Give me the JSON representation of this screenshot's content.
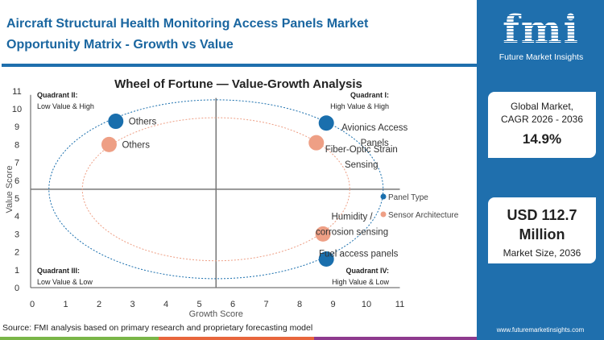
{
  "header": {
    "title": "Aircraft Structural Health Monitoring Access Panels Market Opportunity Matrix - Growth vs Value"
  },
  "chart_data": {
    "type": "scatter",
    "title": "Wheel of Fortune — Value-Growth  Analysis",
    "xlabel": "Growth Score",
    "ylabel": "Value Score",
    "xlim": [
      0,
      11
    ],
    "ylim": [
      0,
      11
    ],
    "xticks": [
      "0",
      "1",
      "2",
      "3",
      "4",
      "5",
      "6",
      "7",
      "8",
      "9",
      "10",
      "11"
    ],
    "yticks": [
      "0",
      "1",
      "2",
      "3",
      "4",
      "5",
      "6",
      "7",
      "8",
      "9",
      "10",
      "11"
    ],
    "quadrant_divider": {
      "x": 5.5,
      "y": 5.5
    },
    "quadrants": [
      {
        "title": "Quadrant II:",
        "subtitle": "Low Value & High"
      },
      {
        "title": "Quadrant I:",
        "subtitle": "High Value & High"
      },
      {
        "title": "Quadrant III:",
        "subtitle": "Low Value & Low"
      },
      {
        "title": "Quadrant IV:",
        "subtitle": "High Value & Low"
      }
    ],
    "series": [
      {
        "name": "Panel Type",
        "color": "#1a6fad",
        "ring_radius": 5,
        "points": [
          {
            "label": "Others",
            "x": 2.5,
            "y": 9.3
          },
          {
            "label": "Avionics Access Panels",
            "x": 8.8,
            "y": 9.2
          },
          {
            "label": "Fuel access panels",
            "x": 8.8,
            "y": 1.6
          }
        ]
      },
      {
        "name": "Sensor Architecture",
        "color": "#ee9f85",
        "ring_radius": 4,
        "points": [
          {
            "label": "Others",
            "x": 2.3,
            "y": 8.0
          },
          {
            "label": "Fiber-Optic Strain Sensing",
            "x": 8.5,
            "y": 8.1
          },
          {
            "label": "Humidity / corrosion sensing",
            "x": 8.7,
            "y": 3.0
          }
        ]
      }
    ],
    "legend": "right",
    "grid": false
  },
  "sidebar": {
    "logo_text": "fmi",
    "brand": "Future Market Insights",
    "cagr_label_1": "Global Market,",
    "cagr_label_2": "CAGR 2026 - 2036",
    "cagr_value": "14.9%",
    "size_value_1": "USD 112.7",
    "size_value_2": "Million",
    "size_label": "Market Size, 2036",
    "url": "www.futuremarketinsights.com"
  },
  "footer": {
    "source": "Source: FMI analysis based on primary research and proprietary forecasting model"
  },
  "colors": {
    "brand": "#1f6fad",
    "strip": [
      "#7ab648",
      "#e8663d",
      "#8e3a8e"
    ]
  }
}
